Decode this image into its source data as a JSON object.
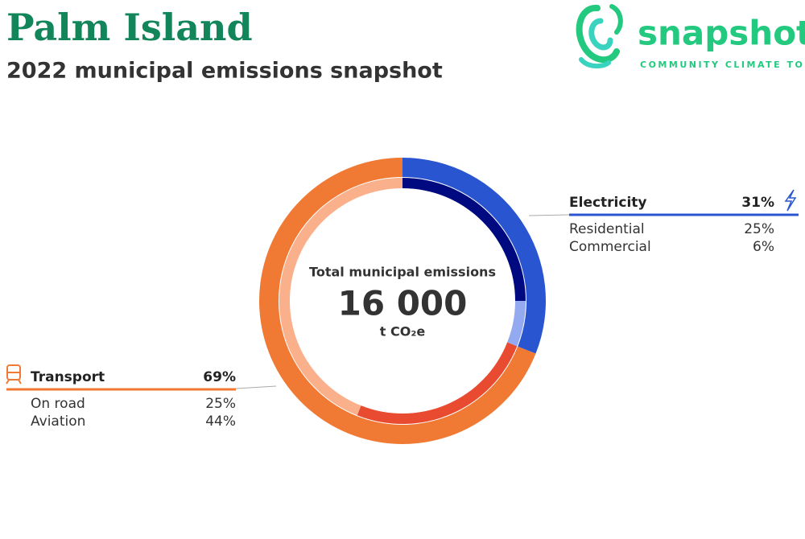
{
  "header": {
    "title": "Palm Island",
    "subtitle": "2022 municipal emissions snapshot"
  },
  "logo": {
    "name": "snapshot",
    "tagline": "COMMUNITY CLIMATE TOOL"
  },
  "chart_data": {
    "type": "donut",
    "center_title": "Total municipal emissions",
    "total": 16000,
    "total_label": "16 000",
    "unit": "t CO₂e",
    "categories": [
      "Electricity",
      "Transport"
    ],
    "values": [
      31,
      69
    ],
    "value_labels": [
      "31%",
      "69%"
    ],
    "colors": [
      "#2a55d0",
      "#f07a33"
    ],
    "subcategories": [
      {
        "names": [
          "Residential",
          "Commercial"
        ],
        "values": [
          25,
          6
        ],
        "value_labels": [
          "25%",
          "6%"
        ],
        "colors": [
          "#000a80",
          "#93a9f0"
        ]
      },
      {
        "names": [
          "On road",
          "Aviation"
        ],
        "values": [
          25,
          44
        ],
        "value_labels": [
          "25%",
          "44%"
        ],
        "colors": [
          "#e94b30",
          "#fbb08c"
        ]
      }
    ]
  }
}
